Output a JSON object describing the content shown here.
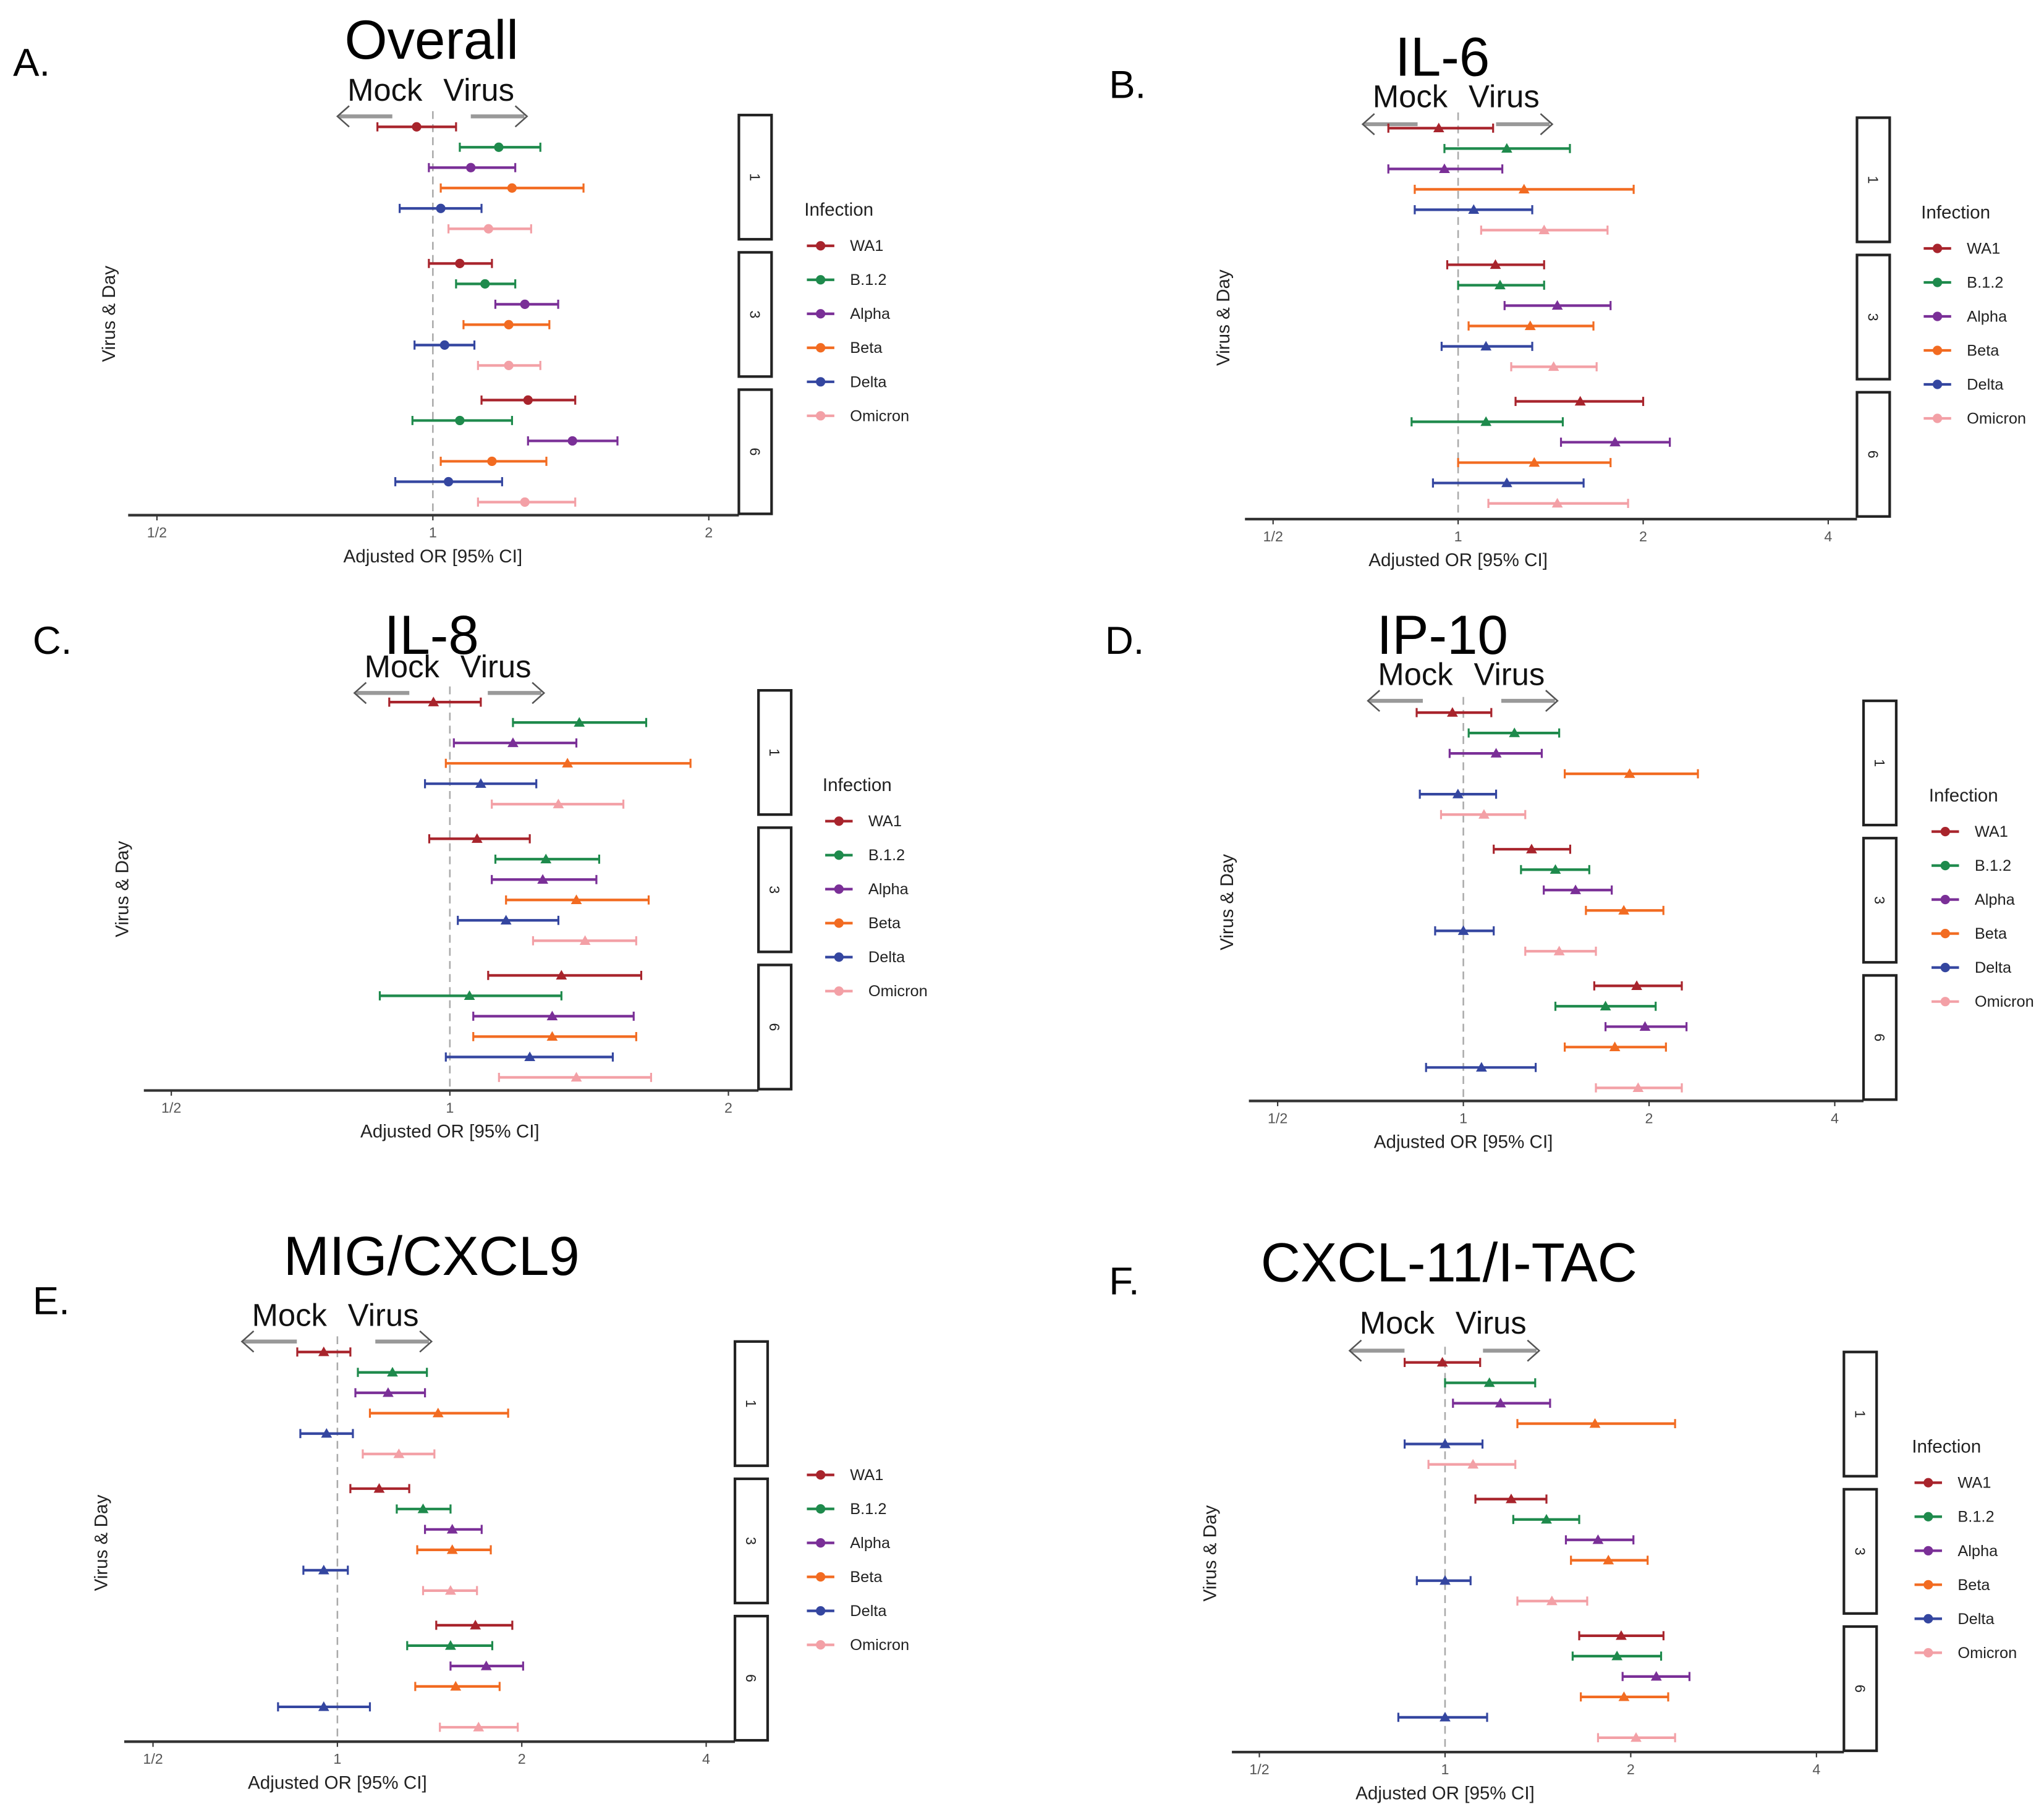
{
  "infections": [
    "WA1",
    "B.1.2",
    "Alpha",
    "Beta",
    "Delta",
    "Omicron"
  ],
  "colors": {
    "WA1": "#a8242c",
    "B.1.2": "#1e8a4c",
    "Alpha": "#7a2f97",
    "Beta": "#f26b21",
    "Delta": "#3446a0",
    "Omicron": "#f3a0a6"
  },
  "chart_data": [
    {
      "type": "forest",
      "panel_label": "A.",
      "title": "Overall",
      "direction_left": "Mock",
      "direction_right": "Virus",
      "xlabel": "Adjusted OR [95% CI]",
      "ylabel": "Virus & Day",
      "xscale": "log2",
      "xticks": [
        {
          "label": "1/2",
          "value": 0.5
        },
        {
          "label": "1",
          "value": 1
        },
        {
          "label": "2",
          "value": 2
        }
      ],
      "reference_line": 1,
      "marker": "circle",
      "legend_title": "Infection",
      "legend": [
        "WA1",
        "B.1.2",
        "Alpha",
        "Beta",
        "Delta",
        "Omicron"
      ],
      "facets": [
        "1",
        "3",
        "6"
      ],
      "estimates": {
        "1": [
          [
            0.96,
            0.87,
            1.06
          ],
          [
            1.18,
            1.07,
            1.31
          ],
          [
            1.1,
            0.99,
            1.23
          ],
          [
            1.22,
            1.02,
            1.46
          ],
          [
            1.02,
            0.92,
            1.13
          ],
          [
            1.15,
            1.04,
            1.28
          ]
        ],
        "3": [
          [
            1.07,
            0.99,
            1.16
          ],
          [
            1.14,
            1.06,
            1.23
          ],
          [
            1.26,
            1.17,
            1.37
          ],
          [
            1.21,
            1.08,
            1.34
          ],
          [
            1.03,
            0.955,
            1.11
          ],
          [
            1.21,
            1.12,
            1.31
          ]
        ],
        "6": [
          [
            1.27,
            1.13,
            1.43
          ],
          [
            1.07,
            0.95,
            1.22
          ],
          [
            1.42,
            1.27,
            1.59
          ],
          [
            1.16,
            1.02,
            1.33
          ],
          [
            1.04,
            0.91,
            1.19
          ],
          [
            1.26,
            1.12,
            1.43
          ]
        ]
      }
    },
    {
      "type": "forest",
      "panel_label": "B.",
      "title": "IL-6",
      "direction_left": "Mock",
      "direction_right": "Virus",
      "xlabel": "Adjusted OR [95% CI]",
      "ylabel": "Virus & Day",
      "xscale": "log2",
      "xticks": [
        {
          "label": "1/2",
          "value": 0.5
        },
        {
          "label": "1",
          "value": 1
        },
        {
          "label": "2",
          "value": 2
        },
        {
          "label": "4",
          "value": 4
        }
      ],
      "reference_line": 1,
      "marker": "triangle",
      "legend_title": "Infection",
      "legend": [
        "WA1",
        "B.1.2",
        "Alpha",
        "Beta",
        "Delta",
        "Omicron"
      ],
      "facets": [
        "1",
        "3",
        "6"
      ],
      "estimates": {
        "1": [
          [
            0.93,
            0.77,
            1.14
          ],
          [
            1.2,
            0.95,
            1.52
          ],
          [
            0.95,
            0.77,
            1.18
          ],
          [
            1.28,
            0.85,
            1.93
          ],
          [
            1.06,
            0.85,
            1.32
          ],
          [
            1.38,
            1.09,
            1.75
          ]
        ],
        "3": [
          [
            1.15,
            0.96,
            1.38
          ],
          [
            1.17,
            1.0,
            1.38
          ],
          [
            1.45,
            1.19,
            1.77
          ],
          [
            1.31,
            1.04,
            1.66
          ],
          [
            1.11,
            0.94,
            1.32
          ],
          [
            1.43,
            1.22,
            1.68
          ]
        ],
        "6": [
          [
            1.58,
            1.24,
            2.0
          ],
          [
            1.11,
            0.84,
            1.48
          ],
          [
            1.8,
            1.47,
            2.21
          ],
          [
            1.33,
            1.0,
            1.77
          ],
          [
            1.2,
            0.91,
            1.6
          ],
          [
            1.45,
            1.12,
            1.89
          ]
        ]
      }
    },
    {
      "type": "forest",
      "panel_label": "C.",
      "title": "IL-8",
      "direction_left": "Mock",
      "direction_right": "Virus",
      "xlabel": "Adjusted OR [95% CI]",
      "ylabel": "Virus & Day",
      "xscale": "log2",
      "xticks": [
        {
          "label": "1/2",
          "value": 0.5
        },
        {
          "label": "1",
          "value": 1
        },
        {
          "label": "2",
          "value": 2
        }
      ],
      "reference_line": 1,
      "marker": "triangle",
      "legend_title": "Infection",
      "legend": [
        "WA1",
        "B.1.2",
        "Alpha",
        "Beta",
        "Delta",
        "Omicron"
      ],
      "facets": [
        "1",
        "3",
        "6"
      ],
      "estimates": {
        "1": [
          [
            0.96,
            0.86,
            1.08
          ],
          [
            1.38,
            1.17,
            1.63
          ],
          [
            1.17,
            1.01,
            1.37
          ],
          [
            1.34,
            0.99,
            1.82
          ],
          [
            1.08,
            0.94,
            1.24
          ],
          [
            1.31,
            1.11,
            1.54
          ]
        ],
        "3": [
          [
            1.07,
            0.95,
            1.22
          ],
          [
            1.27,
            1.12,
            1.45
          ],
          [
            1.26,
            1.11,
            1.44
          ],
          [
            1.37,
            1.15,
            1.64
          ],
          [
            1.15,
            1.02,
            1.31
          ],
          [
            1.4,
            1.23,
            1.59
          ]
        ],
        "6": [
          [
            1.32,
            1.1,
            1.61
          ],
          [
            1.05,
            0.84,
            1.32
          ],
          [
            1.29,
            1.06,
            1.58
          ],
          [
            1.29,
            1.06,
            1.59
          ],
          [
            1.22,
            0.99,
            1.5
          ],
          [
            1.37,
            1.13,
            1.65
          ]
        ]
      }
    },
    {
      "type": "forest",
      "panel_label": "D.",
      "title": "IP-10",
      "direction_left": "Mock",
      "direction_right": "Virus",
      "xlabel": "Adjusted OR [95% CI]",
      "ylabel": "Virus & Day",
      "xscale": "log2",
      "xticks": [
        {
          "label": "1/2",
          "value": 0.5
        },
        {
          "label": "1",
          "value": 1
        },
        {
          "label": "2",
          "value": 2
        },
        {
          "label": "4",
          "value": 4
        }
      ],
      "reference_line": 1,
      "marker": "triangle",
      "legend_title": "Infection",
      "legend": [
        "WA1",
        "B.1.2",
        "Alpha",
        "Beta",
        "Delta",
        "Omicron"
      ],
      "facets": [
        "1",
        "3",
        "6"
      ],
      "estimates": {
        "1": [
          [
            0.96,
            0.84,
            1.11
          ],
          [
            1.21,
            1.02,
            1.43
          ],
          [
            1.13,
            0.95,
            1.34
          ],
          [
            1.86,
            1.46,
            2.4
          ],
          [
            0.98,
            0.85,
            1.13
          ],
          [
            1.08,
            0.92,
            1.26
          ]
        ],
        "3": [
          [
            1.29,
            1.12,
            1.49
          ],
          [
            1.41,
            1.24,
            1.6
          ],
          [
            1.52,
            1.35,
            1.74
          ],
          [
            1.82,
            1.58,
            2.11
          ],
          [
            1.0,
            0.9,
            1.12
          ],
          [
            1.43,
            1.26,
            1.64
          ]
        ],
        "6": [
          [
            1.91,
            1.63,
            2.26
          ],
          [
            1.7,
            1.41,
            2.05
          ],
          [
            1.97,
            1.7,
            2.3
          ],
          [
            1.76,
            1.46,
            2.13
          ],
          [
            1.07,
            0.87,
            1.31
          ],
          [
            1.92,
            1.64,
            2.26
          ]
        ]
      }
    },
    {
      "type": "forest",
      "panel_label": "E.",
      "title": "MIG/CXCL9",
      "direction_left": "Mock",
      "direction_right": "Virus",
      "xlabel": "Adjusted OR [95% CI]",
      "ylabel": "Virus & Day",
      "xscale": "log2",
      "xticks": [
        {
          "label": "1/2",
          "value": 0.5
        },
        {
          "label": "1",
          "value": 1
        },
        {
          "label": "2",
          "value": 2
        },
        {
          "label": "4",
          "value": 4
        }
      ],
      "reference_line": 1,
      "marker": "triangle",
      "legend_title": null,
      "legend": [
        "WA1",
        "B.1.2",
        "Alpha",
        "Beta",
        "Delta",
        "Omicron"
      ],
      "facets": [
        "1",
        "3",
        "6"
      ],
      "estimates": {
        "1": [
          [
            0.95,
            0.86,
            1.05
          ],
          [
            1.23,
            1.08,
            1.4
          ],
          [
            1.21,
            1.07,
            1.39
          ],
          [
            1.46,
            1.13,
            1.9
          ],
          [
            0.96,
            0.87,
            1.06
          ],
          [
            1.26,
            1.1,
            1.44
          ]
        ],
        "3": [
          [
            1.17,
            1.05,
            1.31
          ],
          [
            1.38,
            1.25,
            1.53
          ],
          [
            1.54,
            1.39,
            1.72
          ],
          [
            1.54,
            1.35,
            1.78
          ],
          [
            0.95,
            0.88,
            1.04
          ],
          [
            1.53,
            1.38,
            1.69
          ]
        ],
        "6": [
          [
            1.68,
            1.45,
            1.93
          ],
          [
            1.53,
            1.3,
            1.79
          ],
          [
            1.75,
            1.53,
            2.01
          ],
          [
            1.56,
            1.34,
            1.84
          ],
          [
            0.95,
            0.8,
            1.13
          ],
          [
            1.7,
            1.47,
            1.97
          ]
        ]
      }
    },
    {
      "type": "forest",
      "panel_label": "F.",
      "title": "CXCL-11/I-TAC",
      "direction_left": "Mock",
      "direction_right": "Virus",
      "xlabel": "Adjusted OR [95% CI]",
      "ylabel": "Virus & Day",
      "xscale": "log2",
      "xticks": [
        {
          "label": "1/2",
          "value": 0.5
        },
        {
          "label": "1",
          "value": 1
        },
        {
          "label": "2",
          "value": 2
        },
        {
          "label": "4",
          "value": 4
        }
      ],
      "reference_line": 1,
      "marker": "triangle",
      "legend_title": "Infection",
      "legend": [
        "WA1",
        "B.1.2",
        "Alpha",
        "Beta",
        "Delta",
        "Omicron"
      ],
      "facets": [
        "1",
        "3",
        "6"
      ],
      "estimates": {
        "1": [
          [
            0.99,
            0.86,
            1.14
          ],
          [
            1.18,
            1.0,
            1.4
          ],
          [
            1.23,
            1.03,
            1.48
          ],
          [
            1.75,
            1.31,
            2.36
          ],
          [
            1.0,
            0.86,
            1.15
          ],
          [
            1.11,
            0.94,
            1.3
          ]
        ],
        "3": [
          [
            1.28,
            1.12,
            1.46
          ],
          [
            1.46,
            1.29,
            1.65
          ],
          [
            1.77,
            1.57,
            2.02
          ],
          [
            1.84,
            1.6,
            2.13
          ],
          [
            1.0,
            0.9,
            1.1
          ],
          [
            1.49,
            1.31,
            1.7
          ]
        ],
        "6": [
          [
            1.93,
            1.65,
            2.26
          ],
          [
            1.9,
            1.61,
            2.24
          ],
          [
            2.2,
            1.94,
            2.49
          ],
          [
            1.95,
            1.66,
            2.3
          ],
          [
            1.0,
            0.84,
            1.17
          ],
          [
            2.04,
            1.77,
            2.36
          ]
        ]
      }
    }
  ]
}
